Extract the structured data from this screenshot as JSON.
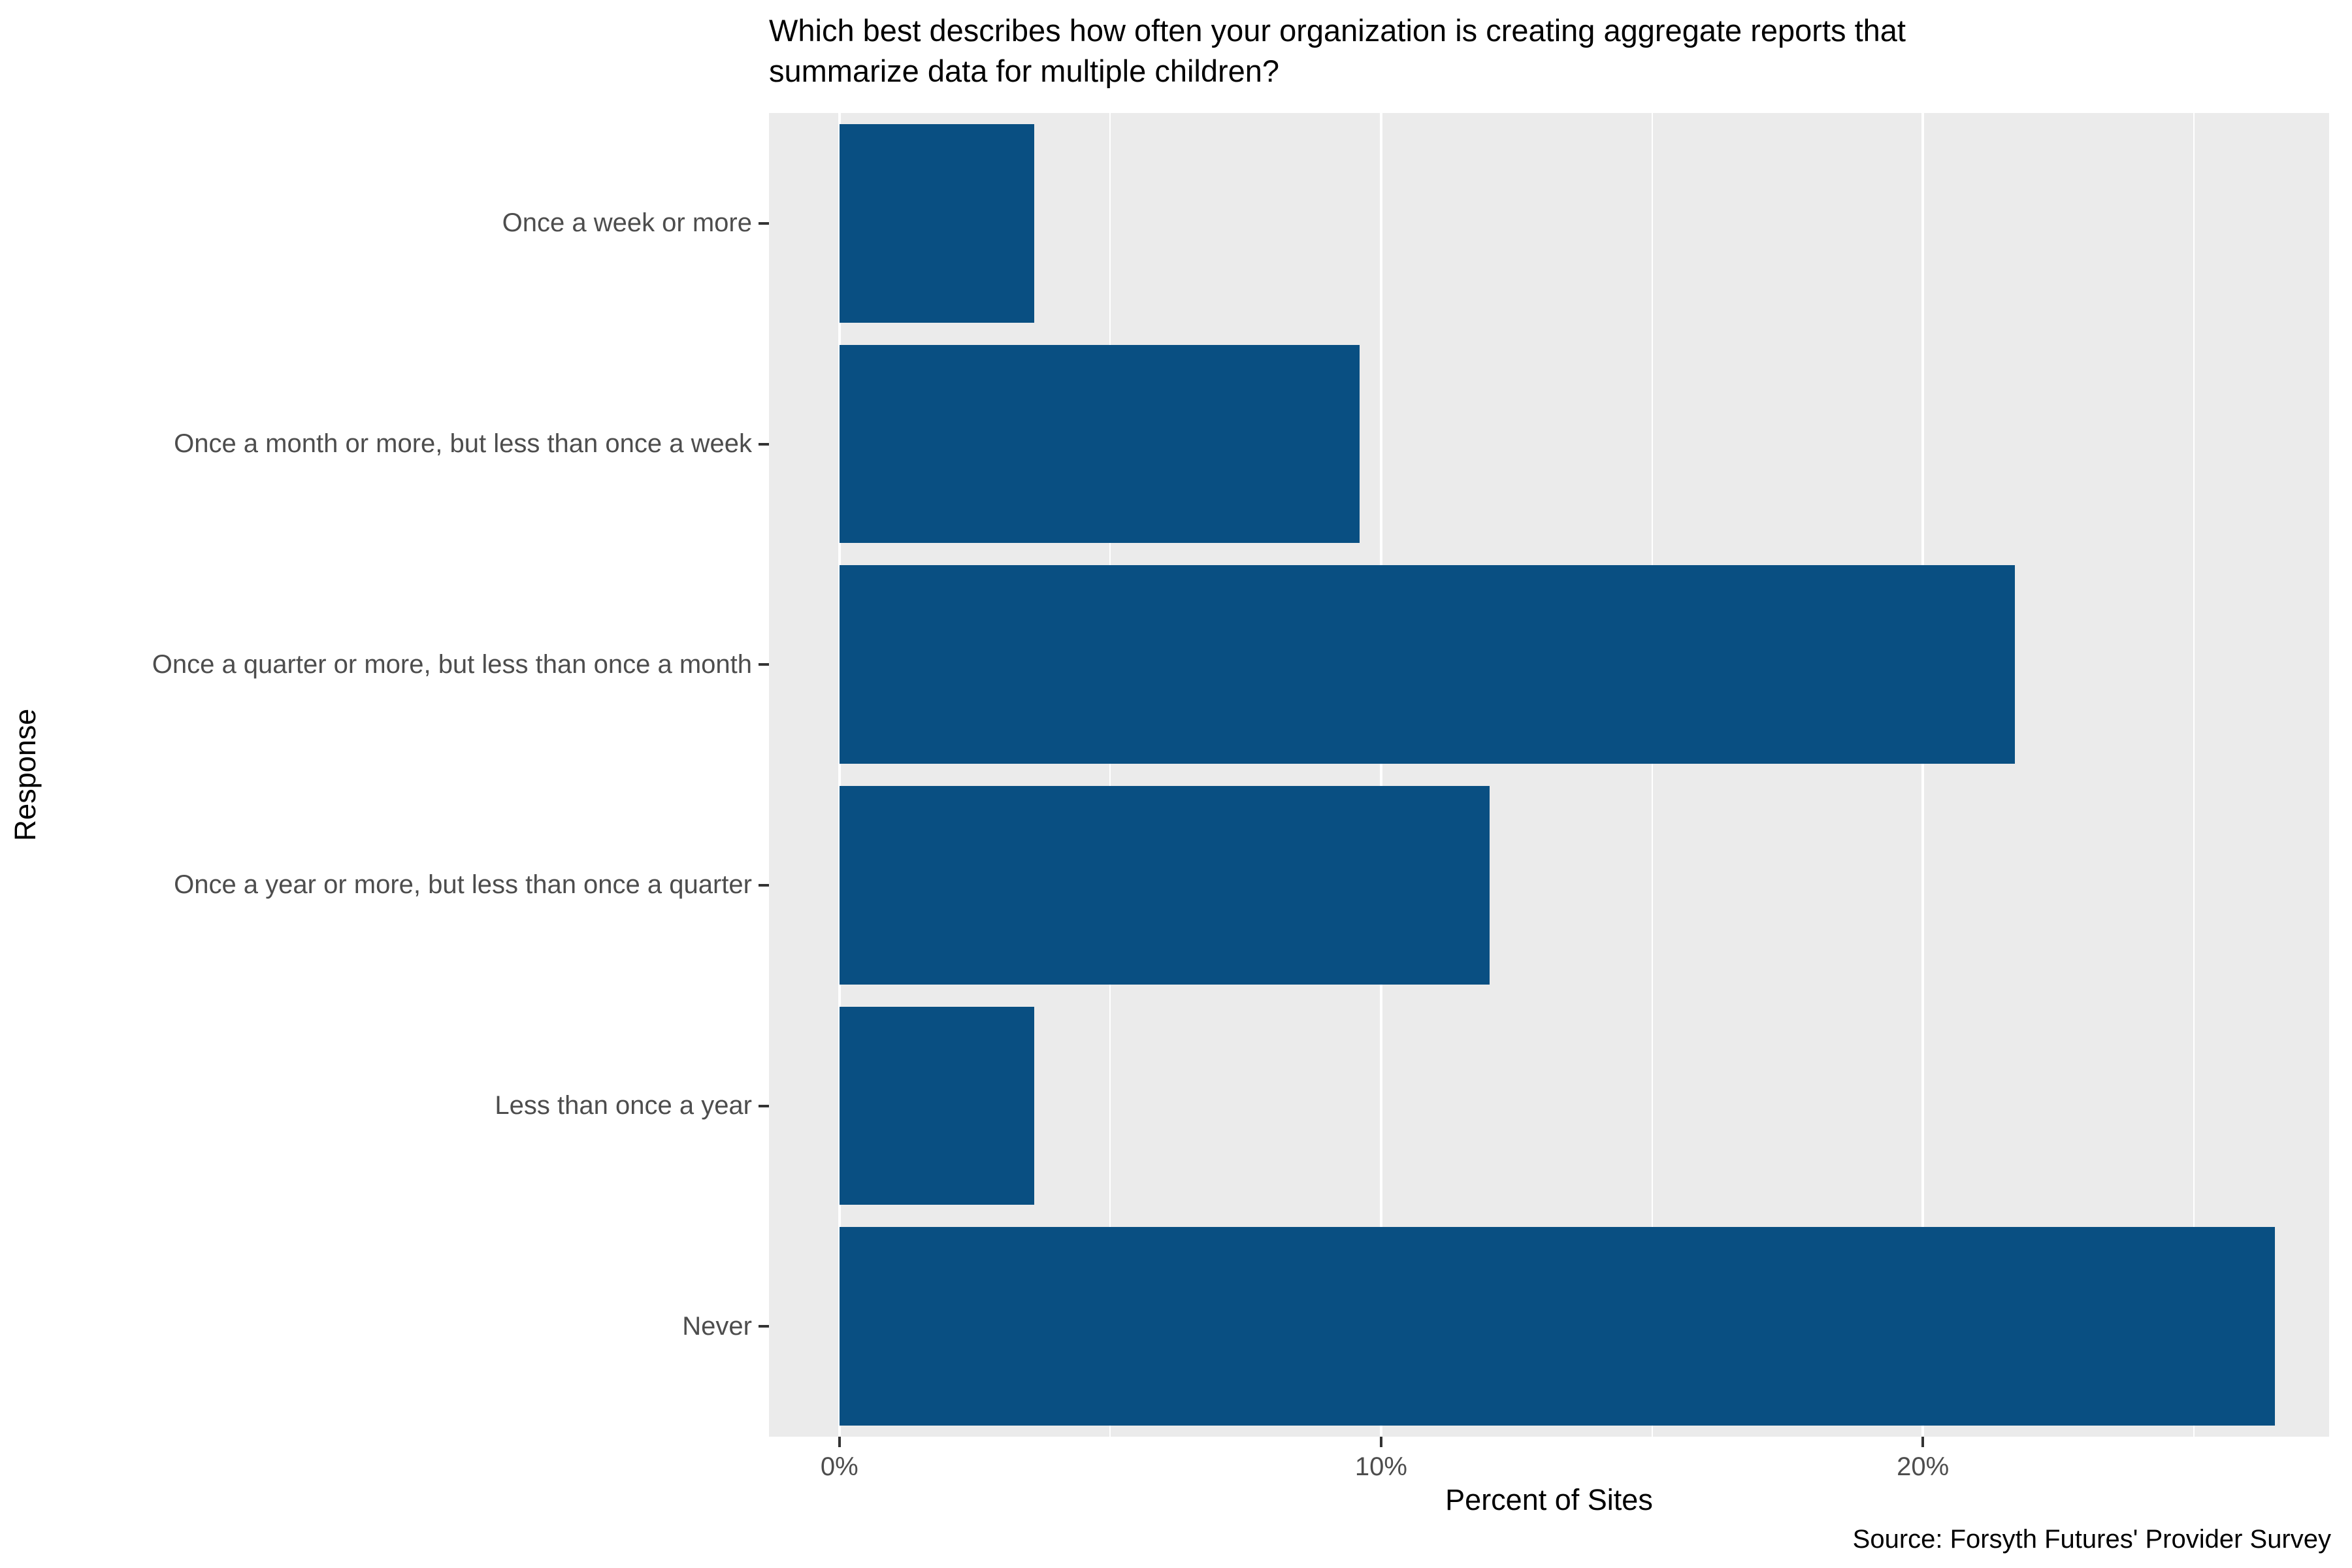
{
  "chart_data": {
    "type": "bar",
    "orientation": "horizontal",
    "title": "Which best describes how often your organization is creating aggregate reports that\nsummarize data for multiple children?",
    "categories": [
      "Once a week or more",
      "Once a month or more, but less than once a week",
      "Once a quarter or more, but less than once a month",
      "Once a year or more, but less than once a quarter",
      "Less than once a year",
      "Never"
    ],
    "values": [
      3.6,
      9.6,
      21.7,
      12.0,
      3.6,
      26.5
    ],
    "xlabel": "Percent of Sites",
    "ylabel": "Response",
    "caption": "Source: Forsyth Futures' Provider Survey",
    "xlim": [
      -1.3,
      27.5
    ],
    "x_ticks": [
      {
        "value": 0,
        "label": "0%"
      },
      {
        "value": 10,
        "label": "10%"
      },
      {
        "value": 20,
        "label": "20%"
      }
    ],
    "grid": {
      "major": [
        0,
        10,
        20
      ],
      "minor": [
        5,
        15,
        25
      ],
      "grid_on": true
    },
    "bar_width_fraction": 0.9,
    "bar_color": "#094F82",
    "panel_bg": "#EBEBEB",
    "gridline_color": "#FFFFFF",
    "tick_label_color": "#4D4D4D",
    "legend": "none"
  }
}
